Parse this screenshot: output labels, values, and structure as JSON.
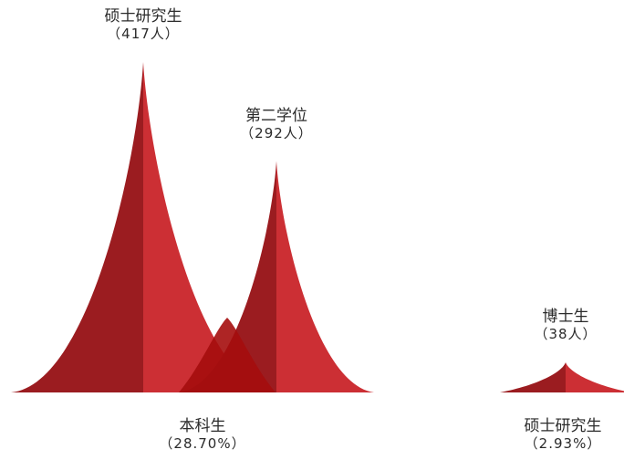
{
  "chart_data": {
    "type": "bar",
    "categories": [
      "硕士研究生",
      "第二学位",
      "博士生"
    ],
    "values": [
      417,
      292,
      38
    ],
    "value_labels": [
      "（417人）",
      "（292人）",
      "（38人）"
    ],
    "groups": [
      {
        "label": "本科生",
        "value_label": "（28.70%）"
      },
      {
        "label": "硕士研究生",
        "value_label": "（2.93%）"
      }
    ],
    "colors": {
      "dark": "#9b1c20",
      "light": "#cc2f34",
      "overlap": "#a50d0d"
    }
  }
}
